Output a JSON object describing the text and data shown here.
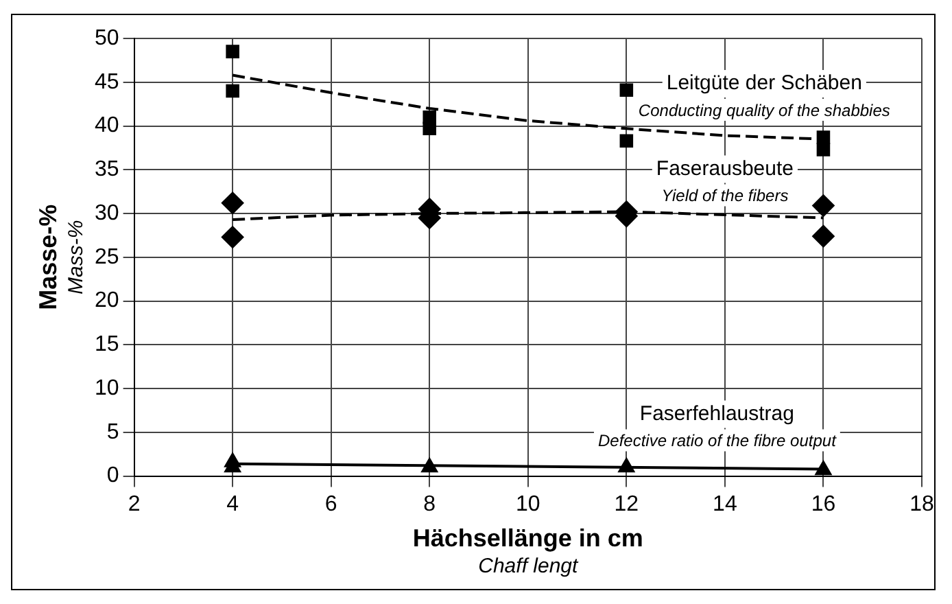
{
  "chart_data": {
    "type": "scatter",
    "xlabel": "Hächsellänge in cm\nChaff lengt",
    "ylabel": "Masse-%\nMass-%",
    "xlim": [
      2,
      18
    ],
    "xticks": [
      2,
      4,
      6,
      8,
      10,
      12,
      14,
      16,
      18
    ],
    "ylim": [
      0,
      50
    ],
    "yticks": [
      0,
      5,
      10,
      15,
      20,
      25,
      30,
      35,
      40,
      45,
      50
    ],
    "grid": true,
    "legend": false,
    "series": [
      {
        "color": "#000000",
        "marker": "square",
        "x": [
          4,
          4,
          8,
          8,
          12,
          12,
          16,
          16
        ],
        "values": [
          48.5,
          44,
          41,
          39.7,
          44.1,
          38.3,
          38.7,
          37.3
        ]
      },
      {
        "type": "line",
        "color": "#000000",
        "marker": "none",
        "line_style": "dashed",
        "x": [
          4,
          6,
          8,
          10,
          12,
          14,
          16
        ],
        "values": [
          45.8,
          43.8,
          42,
          40.6,
          39.7,
          38.9,
          38.5
        ]
      },
      {
        "color": "#000000",
        "marker": "diamond",
        "x": [
          4,
          4,
          8,
          8,
          12,
          12,
          16,
          16
        ],
        "values": [
          31.2,
          27.3,
          30.5,
          29.5,
          30.2,
          29.7,
          30.9,
          27.4
        ]
      },
      {
        "type": "line",
        "color": "#000000",
        "marker": "none",
        "line_style": "dashed",
        "x": [
          4,
          6,
          8,
          12,
          16
        ],
        "values": [
          29.3,
          29.8,
          30,
          30.2,
          29.5
        ]
      },
      {
        "color": "#000000",
        "marker": "triangle",
        "x": [
          4,
          4,
          8,
          12,
          16
        ],
        "values": [
          1.6,
          1,
          1,
          1,
          0.7
        ]
      },
      {
        "type": "line",
        "color": "#000000",
        "marker": "none",
        "line_style": "solid",
        "x": [
          4,
          16
        ],
        "values": [
          1.4,
          0.8
        ]
      }
    ],
    "annotations": [
      "Leitgüte der Schäben\nConducting quality of the shabbies",
      "Faserausbeute\nYield of the fibers",
      "Faserfehlaustrag\nDefective ratio of the fibre output"
    ]
  }
}
